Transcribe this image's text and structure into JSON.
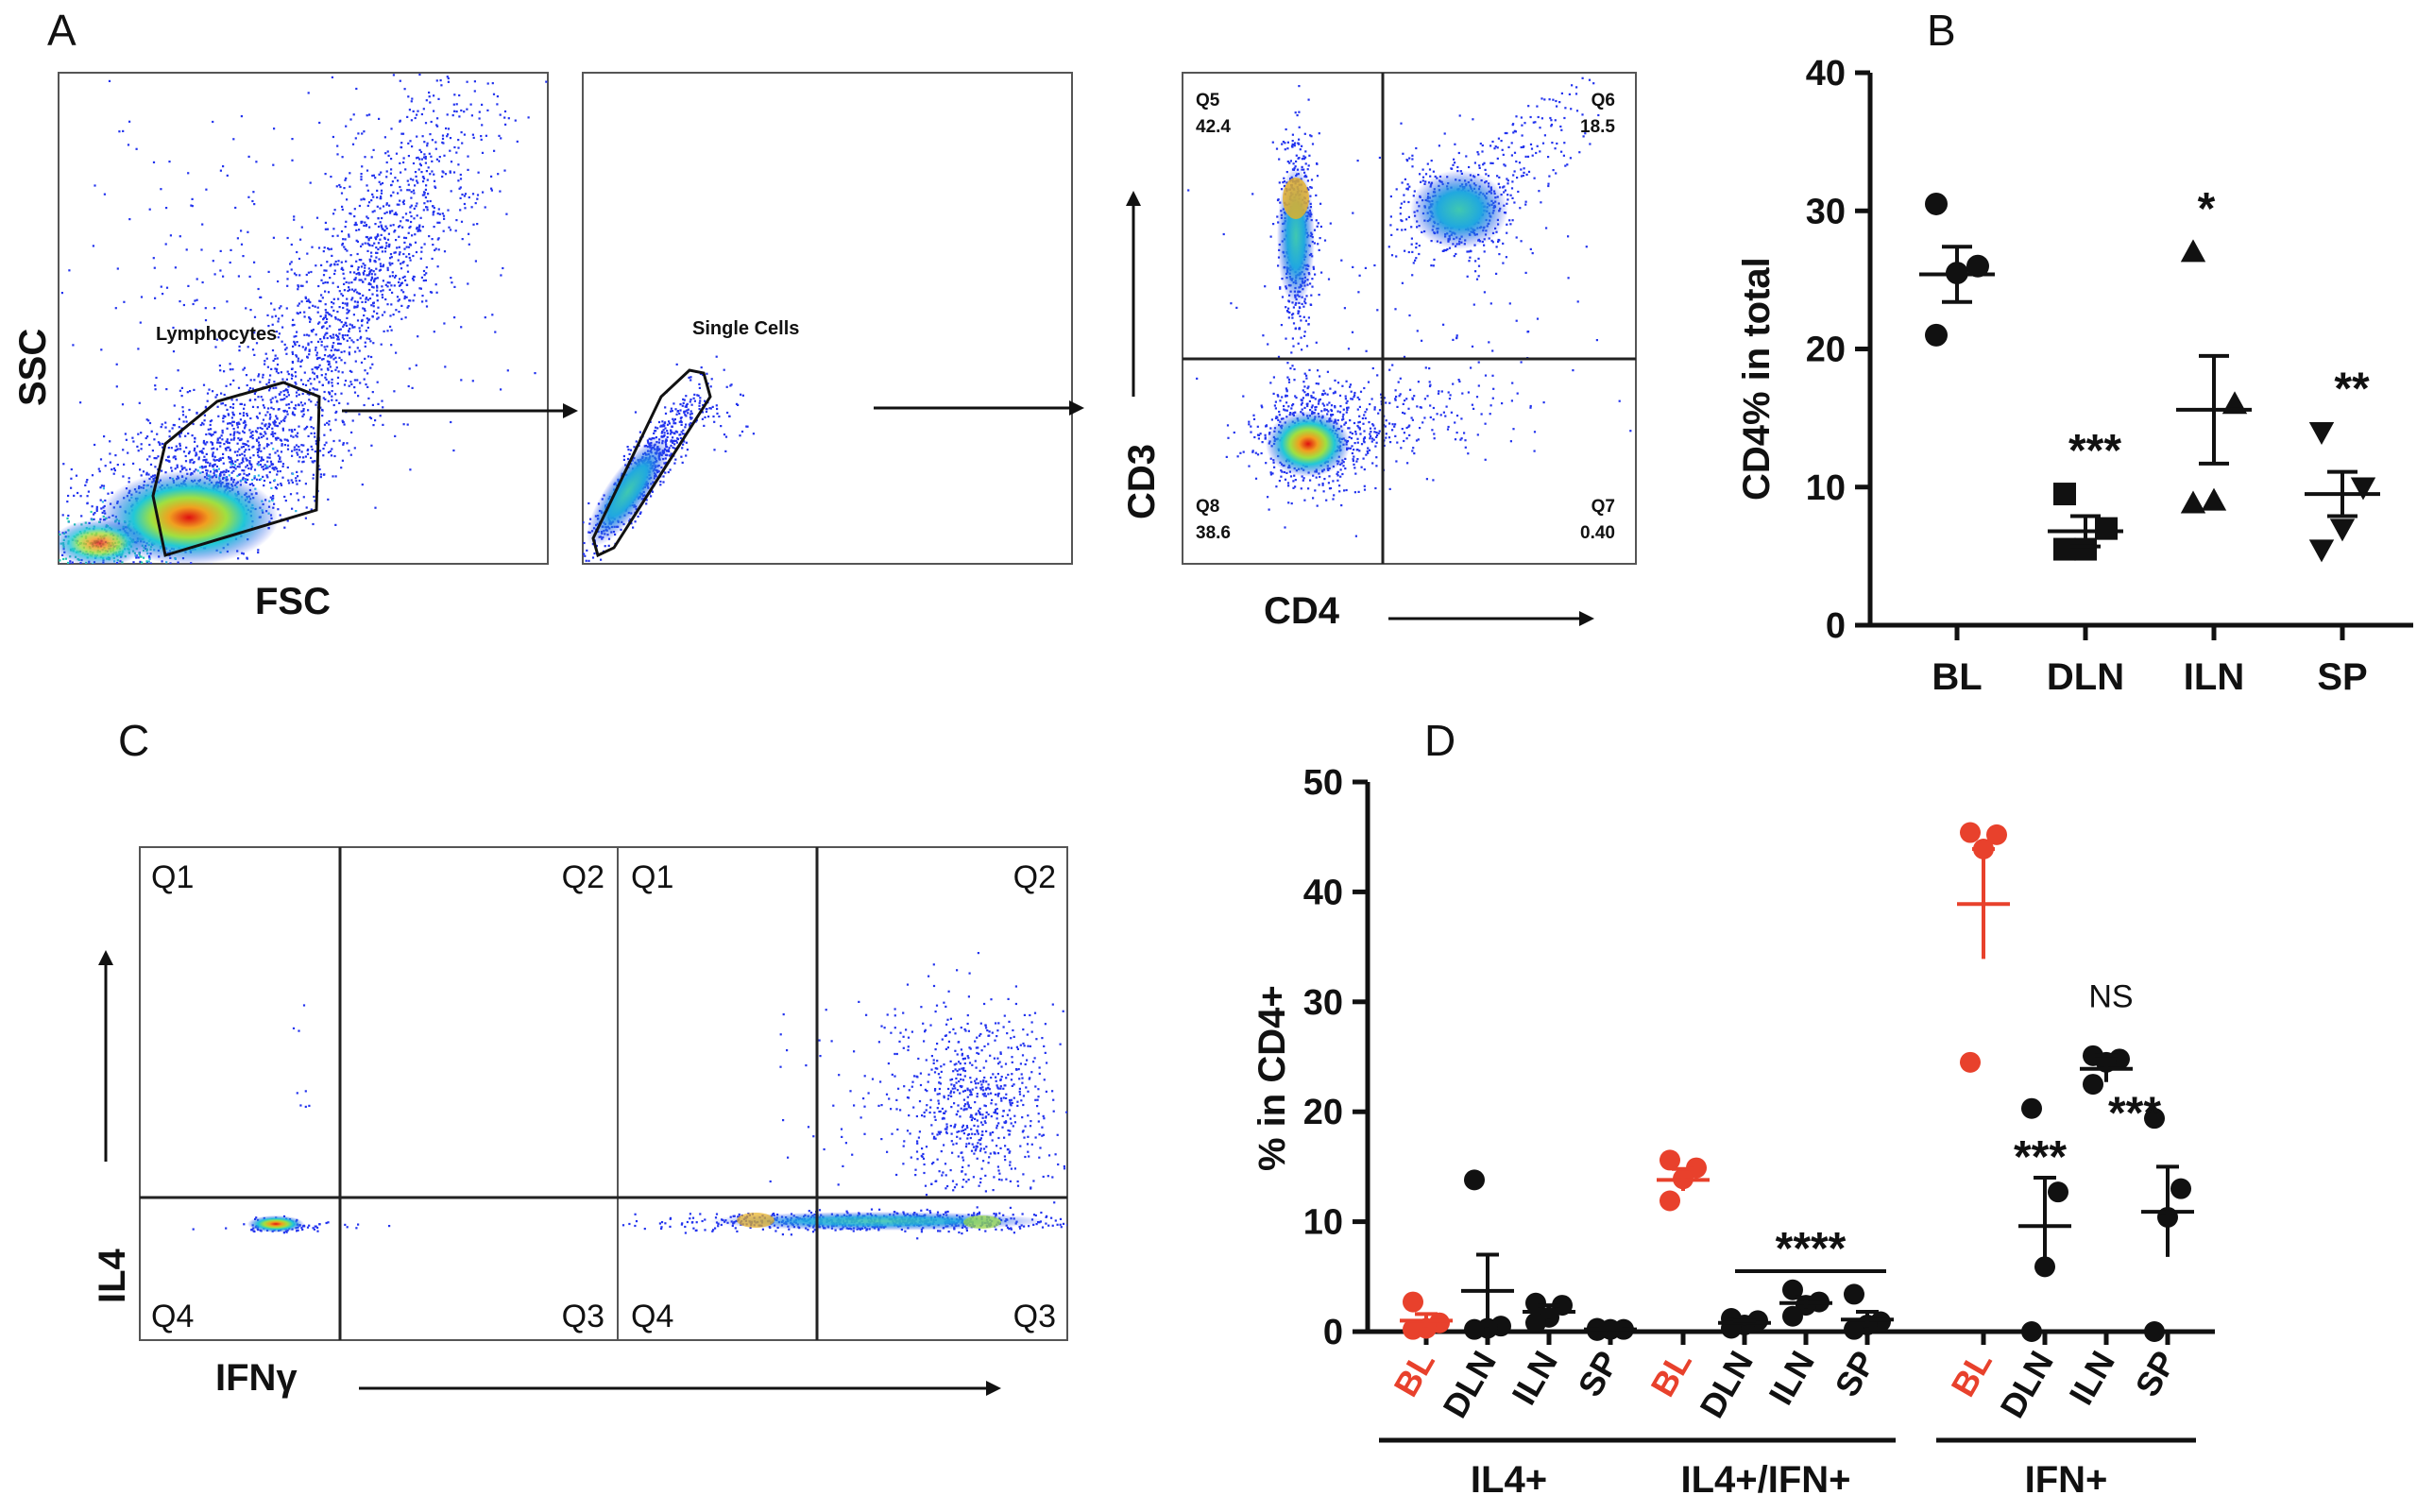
{
  "panels": {
    "A": "A",
    "B": "B",
    "C": "C",
    "D": "D"
  },
  "panel_a": {
    "plot1": {
      "x_label": "FSC",
      "y_label": "SSC",
      "gate_label": "Lymphocytes"
    },
    "plot2": {
      "gate_label": "Single Cells"
    },
    "plot3": {
      "x_label": "CD4",
      "y_label": "CD3",
      "quadrants": [
        {
          "name": "Q5",
          "value": "42.4"
        },
        {
          "name": "Q6",
          "value": "18.5"
        },
        {
          "name": "Q8",
          "value": "38.6"
        },
        {
          "name": "Q7",
          "value": "0.40"
        }
      ]
    }
  },
  "panel_c": {
    "x_label": "IFNγ",
    "y_label": "IL4",
    "quadrants": [
      "Q1",
      "Q2",
      "Q4",
      "Q3"
    ]
  },
  "colors": {
    "red": "#e8412c",
    "black": "#111111",
    "density_low": "#2233ee",
    "density_high": "#e01010"
  },
  "chart_data": [
    {
      "type": "scatter",
      "panel": "B",
      "ylabel": "CD4% in total",
      "ylim": [
        0,
        40
      ],
      "yticks": [
        0,
        10,
        20,
        30,
        40
      ],
      "categories": [
        "BL",
        "DLN",
        "ILN",
        "SP"
      ],
      "markers": [
        "circle",
        "square",
        "triangle-up",
        "triangle-down"
      ],
      "points": [
        [
          30.5,
          26,
          25.5,
          21
        ],
        [
          9.5,
          7,
          5.5,
          5.5
        ],
        [
          27,
          16,
          9,
          8.8
        ],
        [
          14,
          10,
          7,
          5.5
        ]
      ],
      "mean": [
        25.4,
        6.8,
        15.6,
        9.5
      ],
      "sem": [
        2,
        1.1,
        3.9,
        1.6
      ],
      "significance": [
        "",
        "***",
        "*",
        "**"
      ]
    },
    {
      "type": "scatter",
      "panel": "D",
      "ylabel": "% in CD4+",
      "ylim": [
        0,
        50
      ],
      "yticks": [
        0,
        10,
        20,
        30,
        40,
        50
      ],
      "groups": [
        {
          "label": "IL4+",
          "categories": [
            "BL",
            "DLN",
            "ILN",
            "SP"
          ],
          "points": [
            [
              2.7,
              0.8,
              0.3,
              0.2
            ],
            [
              13.8,
              0.5,
              0.3,
              0.2
            ],
            [
              2.6,
              2.4,
              1.3,
              0.8
            ],
            [
              0.3,
              0.2,
              0.2,
              0.1
            ]
          ],
          "mean": [
            1,
            3.7,
            1.8,
            0.2
          ],
          "sem": [
            0.6,
            3.3,
            0.6,
            0.1
          ]
        },
        {
          "label": "IL4+/IFN+",
          "categories": [
            "BL",
            "DLN",
            "ILN",
            "SP"
          ],
          "points": [
            [
              15.6,
              14.9,
              13.9,
              11.9
            ],
            [
              1.2,
              1,
              0.6,
              0.3
            ],
            [
              3.8,
              2.7,
              2.4,
              1.4
            ],
            [
              3.4,
              0.9,
              0.6,
              0.2
            ]
          ],
          "mean": [
            13.8,
            0.8,
            2.6,
            1.1
          ],
          "sem": [
            1,
            0.2,
            0.5,
            0.7
          ],
          "significance": "****"
        },
        {
          "label": "IFN+",
          "categories": [
            "BL",
            "DLN",
            "ILN",
            "SP"
          ],
          "points": [
            [
              45.4,
              45.2,
              43.9,
              24.5
            ],
            [
              20.3,
              12.7,
              5.9,
              0
            ],
            [
              25.1,
              24.8,
              24.5,
              22.5
            ],
            [
              19.4,
              13,
              10.4,
              0
            ]
          ],
          "mean": [
            38.9,
            9.6,
            23.9,
            10.9
          ],
          "sem": [
            5,
            4.4,
            1.2,
            4.1
          ],
          "significance": [
            "",
            "***",
            "NS",
            "***"
          ]
        }
      ]
    }
  ]
}
